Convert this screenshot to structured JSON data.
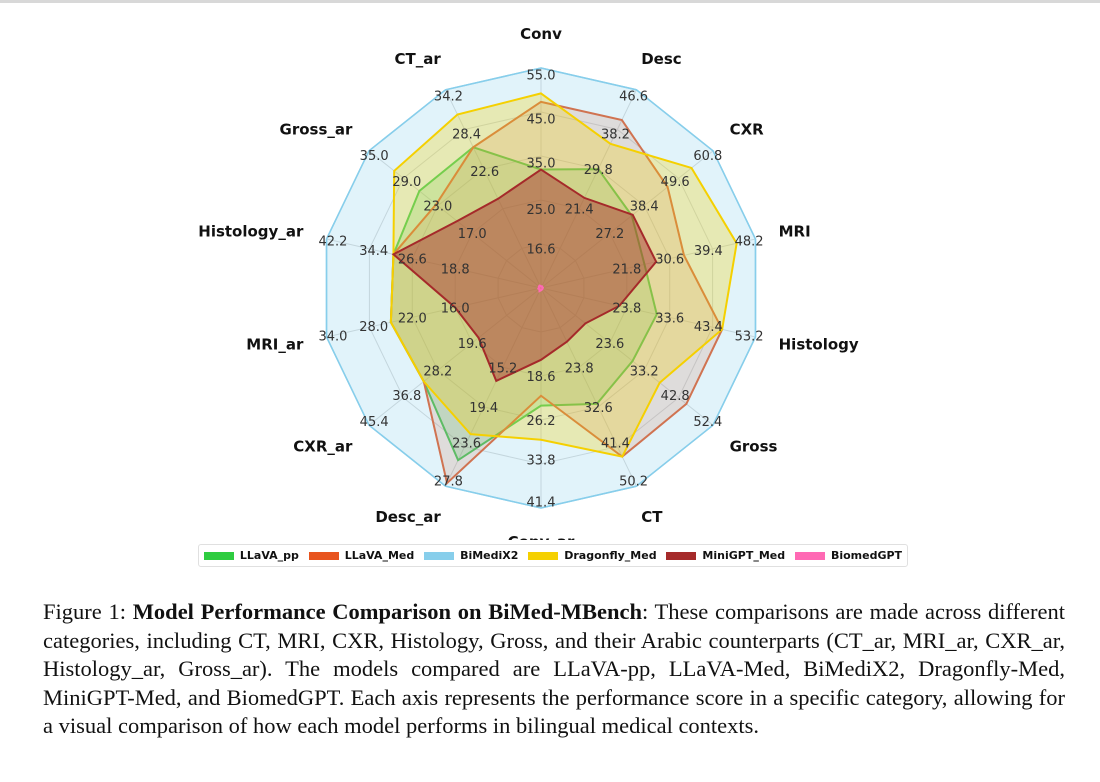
{
  "chart_data": {
    "type": "radar",
    "categories": [
      "Conv",
      "Desc",
      "CXR",
      "MRI",
      "Histology",
      "Gross",
      "CT",
      "Conv_ar",
      "Desc_ar",
      "CXR_ar",
      "MRI_ar",
      "Histology_ar",
      "Gross_ar",
      "CT_ar"
    ],
    "tick_labels": [
      [
        "16.6",
        "25.0",
        "35.0",
        "45.0",
        "55.0"
      ],
      [
        "21.4",
        "29.8",
        "38.2",
        "46.6"
      ],
      [
        "27.2",
        "38.4",
        "49.6",
        "60.8"
      ],
      [
        "21.8",
        "30.6",
        "39.4",
        "48.2"
      ],
      [
        "23.8",
        "33.6",
        "43.4",
        "53.2"
      ],
      [
        "23.6",
        "33.2",
        "42.8",
        "52.4"
      ],
      [
        "23.8",
        "32.6",
        "41.4",
        "50.2"
      ],
      [
        "18.6",
        "26.2",
        "33.8",
        "41.4"
      ],
      [
        "15.2",
        "19.4",
        "23.6",
        "27.8"
      ],
      [
        "19.6",
        "28.2",
        "36.8",
        "45.4"
      ],
      [
        "16.0",
        "22.0",
        "28.0",
        "34.0"
      ],
      [
        "18.8",
        "26.6",
        "34.4",
        "42.2"
      ],
      [
        "17.0",
        "23.0",
        "29.0",
        "35.0"
      ],
      [
        "22.6",
        "28.4",
        "34.2"
      ]
    ],
    "axis_max": [
      65,
      55,
      72,
      57,
      63,
      62,
      59,
      49,
      32,
      54,
      40,
      50,
      41,
      40
    ],
    "axis_min": [
      0,
      0,
      0,
      0,
      0,
      0,
      0,
      0,
      0,
      0,
      0,
      0,
      0,
      0
    ],
    "series": [
      {
        "name": "LLaVA_pp",
        "color": "#2ecc40",
        "fill_opacity": 0.22,
        "values": [
          35.0,
          33.0,
          38.0,
          27.5,
          34.0,
          33.0,
          34.5,
          26.2,
          27.8,
          36.8,
          28.0,
          34.4,
          29.0,
          28.4
        ]
      },
      {
        "name": "LLaVA_Med",
        "color": "#e8541e",
        "fill_opacity": 0.18,
        "values": [
          55.0,
          46.6,
          53.0,
          38.0,
          53.2,
          52.4,
          50.2,
          24.0,
          31.5,
          36.8,
          28.0,
          34.4,
          25.0,
          28.4
        ]
      },
      {
        "name": "BiMediX2",
        "color": "#87ceeb",
        "fill_opacity": 0.25,
        "values": [
          65,
          55,
          72,
          57,
          63,
          62,
          59,
          49,
          32,
          54,
          40,
          50,
          41,
          40
        ]
      },
      {
        "name": "Dragonfly_Med",
        "color": "#f5d000",
        "fill_opacity": 0.28,
        "values": [
          57.5,
          40.0,
          63.0,
          52.0,
          53.2,
          42.8,
          50.2,
          33.8,
          23.6,
          36.8,
          28.0,
          34.4,
          35.0,
          35.0
        ]
      },
      {
        "name": "MiniGPT_Med",
        "color": "#a52a2a",
        "fill_opacity": 0.45,
        "values": [
          35.0,
          25.0,
          38.4,
          30.6,
          23.0,
          16.0,
          16.0,
          16.0,
          15.0,
          19.6,
          16.0,
          34.4,
          20.0,
          18.0
        ]
      },
      {
        "name": "BiomedGPT",
        "color": "#ff69b4",
        "fill_opacity": 0.6,
        "values": [
          0.5,
          0.5,
          0.5,
          0.5,
          0.5,
          0.5,
          0.5,
          0.5,
          0.5,
          0.5,
          0.5,
          0.5,
          0.5,
          0.5
        ]
      }
    ],
    "grid": true,
    "legend_position": "bottom"
  },
  "caption": {
    "label": "Figure 1:",
    "title": "Model Performance Comparison on BiMed-MBench",
    "body": ": These comparisons are made across different categories, including CT, MRI, CXR, Histology, Gross, and their Arabic counterparts (CT_ar, MRI_ar, CXR_ar, Histology_ar, Gross_ar). The models compared are LLaVA-pp, LLaVA-Med, BiMediX2, Dragonfly-Med, MiniGPT-Med, and BiomedGPT. Each axis represents the performance score in a specific category, allowing for a visual comparison of how each model performs in bilingual medical contexts."
  }
}
